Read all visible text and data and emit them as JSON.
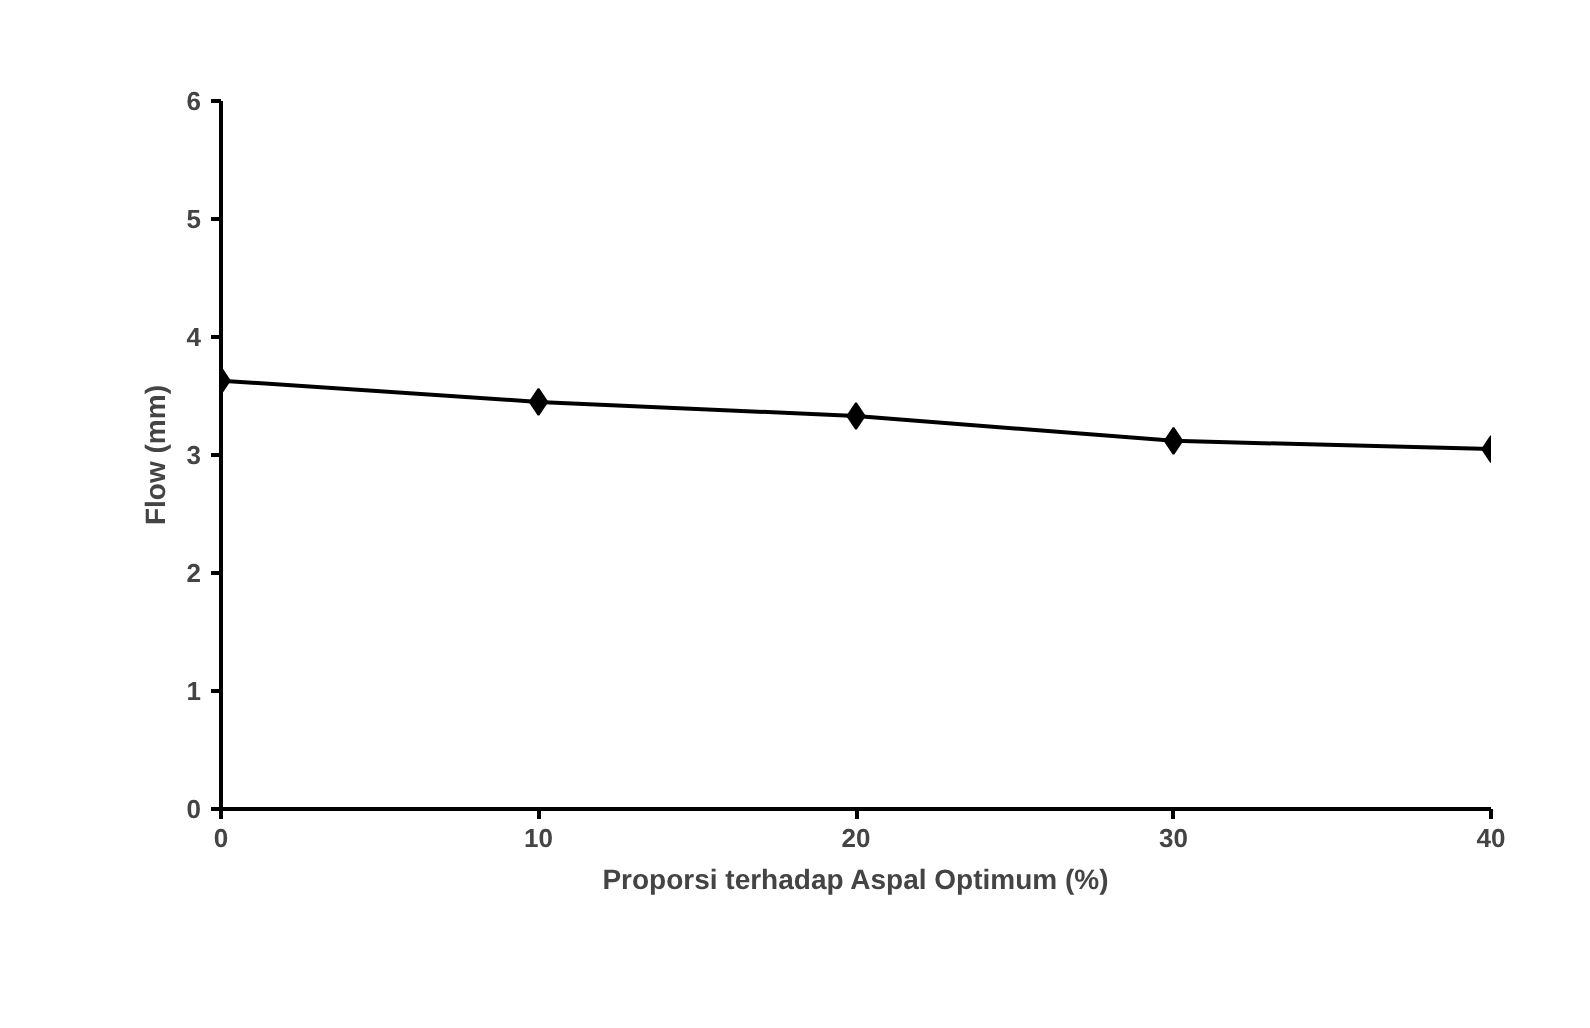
{
  "chart_data": {
    "type": "line",
    "xlabel": "Proporsi terhadap Aspal Optimum (%)",
    "ylabel": "Flow (mm)",
    "x": [
      0,
      10,
      20,
      30,
      40
    ],
    "series": [
      {
        "color": "#000000",
        "values": [
          3.63,
          3.45,
          3.33,
          3.12,
          3.05
        ]
      }
    ],
    "xlim": [
      0,
      40
    ],
    "ylim": [
      0,
      6
    ],
    "xticks": [
      0,
      10,
      20,
      30,
      40
    ],
    "yticks": [
      0,
      1,
      2,
      3,
      4,
      5,
      6
    ],
    "grid": false,
    "marker": "diamond",
    "line_style": "solid"
  }
}
